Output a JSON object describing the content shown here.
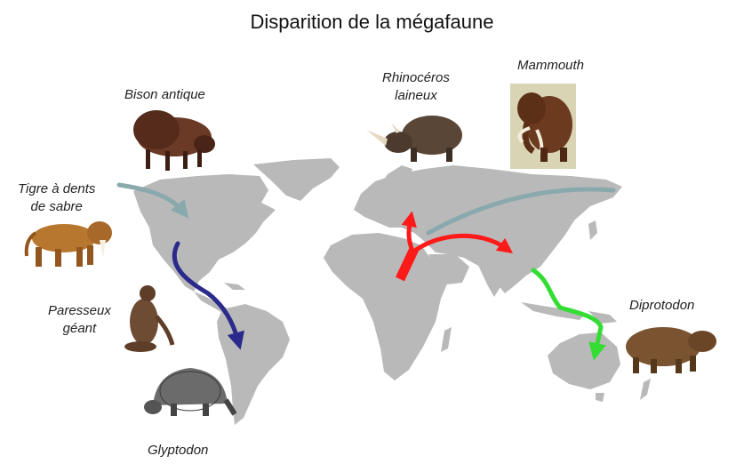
{
  "title": "Disparition de la mégafaune",
  "animals": {
    "bison": {
      "line1": "Bison antique",
      "line2": ""
    },
    "tiger": {
      "line1": "Tigre à dents",
      "line2": "de sabre"
    },
    "sloth": {
      "line1": "Paresseux",
      "line2": "géant"
    },
    "glyptodon": {
      "line1": "Glyptodon",
      "line2": ""
    },
    "rhino": {
      "line1": "Rhinocéros",
      "line2": "laineux"
    },
    "mammoth": {
      "line1": "Mammouth",
      "line2": ""
    },
    "diprotodon": {
      "line1": "Diprotodon",
      "line2": ""
    }
  },
  "colors": {
    "land": "#b9b9b9",
    "americas_north_route": "#8aa9ad",
    "americas_south_route": "#2b2a8c",
    "eurasia_north_route": "#8aa9ad",
    "out_of_africa_route": "#ff1a1a",
    "australia_route": "#33dd33"
  }
}
